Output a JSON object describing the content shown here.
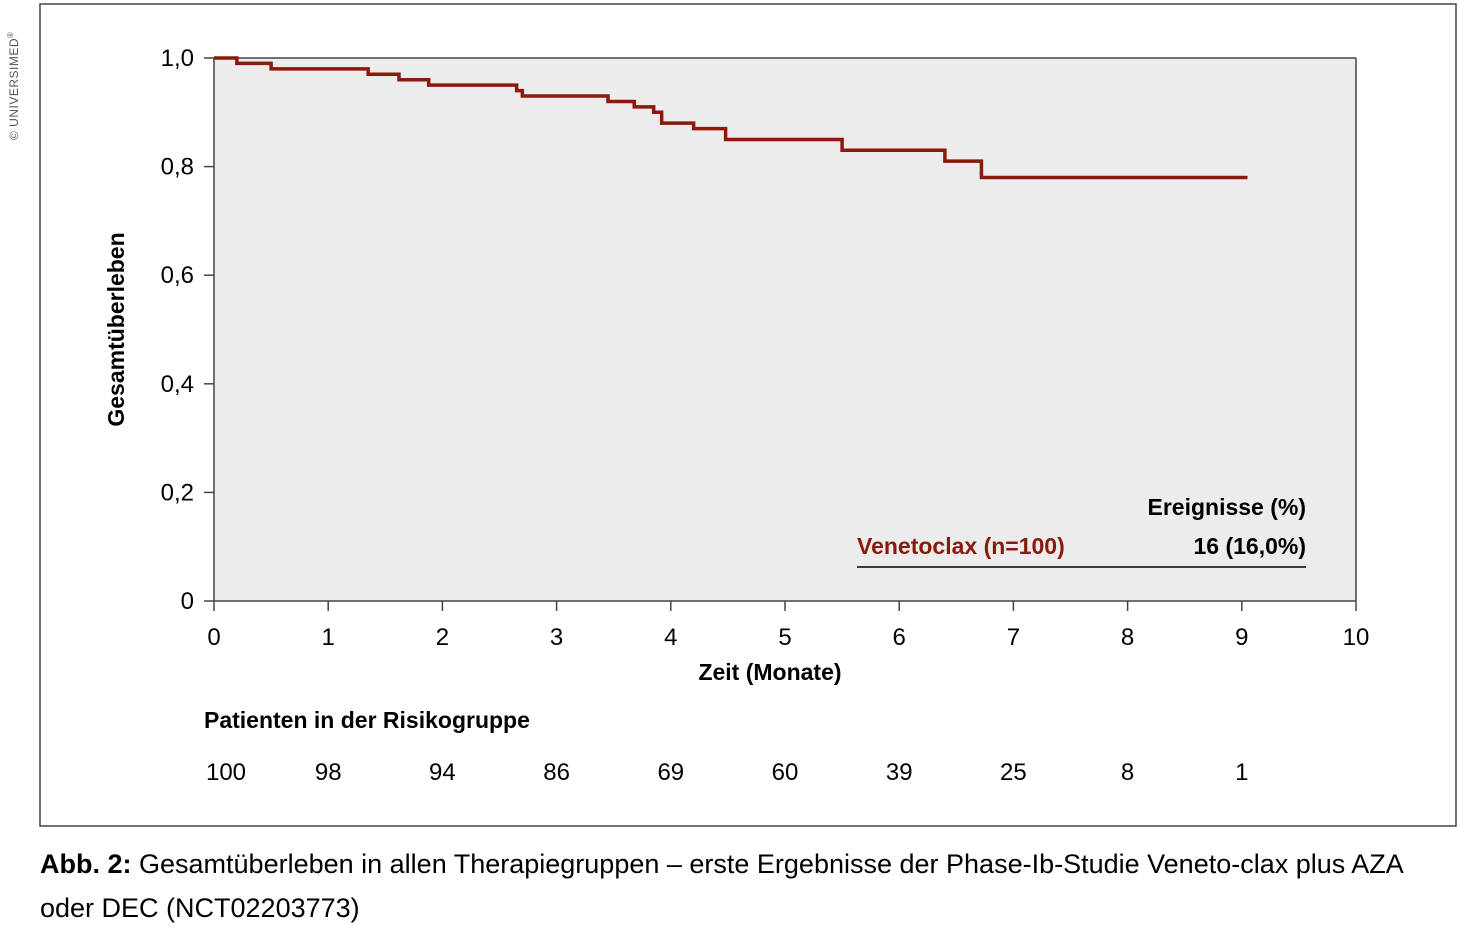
{
  "copyright": "© UNIVERSIMED",
  "copyright_mark": "®",
  "caption": {
    "label": "Abb. 2:",
    "text": "Gesamtüberleben in allen Therapiegruppen – erste Ergebnisse der Phase-Ib-Studie Veneto-clax plus AZA oder DEC (NCT02203773)"
  },
  "colors": {
    "series": "#8b1a0e",
    "plot_bg": "#ececec",
    "frame": "#444444"
  },
  "chart_data": {
    "type": "line",
    "step": true,
    "title": "",
    "xlabel": "Zeit (Monate)",
    "ylabel": "Gesamtüberleben",
    "xlim": [
      0,
      10
    ],
    "ylim": [
      0,
      1
    ],
    "x_ticks": [
      0,
      1,
      2,
      3,
      4,
      5,
      6,
      7,
      8,
      9,
      10
    ],
    "y_ticks": [
      0,
      0.2,
      0.4,
      0.6,
      0.8,
      1.0
    ],
    "y_tick_labels": [
      "0",
      "0,2",
      "0,4",
      "0,6",
      "0,8",
      "1,0"
    ],
    "grid": false,
    "legend": {
      "position": "bottom-right",
      "header": "Ereignisse (%)",
      "series_label": "Venetoclax (n=100)",
      "events": "16 (16,0%)"
    },
    "series": [
      {
        "name": "Venetoclax (n=100)",
        "points": [
          [
            0,
            1.0
          ],
          [
            0.2,
            0.99
          ],
          [
            0.5,
            0.98
          ],
          [
            1.35,
            0.97
          ],
          [
            1.62,
            0.96
          ],
          [
            1.88,
            0.95
          ],
          [
            2.65,
            0.94
          ],
          [
            2.7,
            0.93
          ],
          [
            3.45,
            0.92
          ],
          [
            3.68,
            0.91
          ],
          [
            3.85,
            0.9
          ],
          [
            3.92,
            0.88
          ],
          [
            4.2,
            0.87
          ],
          [
            4.48,
            0.85
          ],
          [
            5.5,
            0.83
          ],
          [
            6.4,
            0.81
          ],
          [
            6.72,
            0.78
          ],
          [
            9.05,
            0.78
          ]
        ]
      }
    ],
    "risk_table": {
      "title": "Patienten in der Risikogruppe",
      "times": [
        0,
        1,
        2,
        3,
        4,
        5,
        6,
        7,
        8,
        9
      ],
      "counts": [
        "100",
        "98",
        "94",
        "86",
        "69",
        "60",
        "39",
        "25",
        "8",
        "1"
      ]
    }
  }
}
